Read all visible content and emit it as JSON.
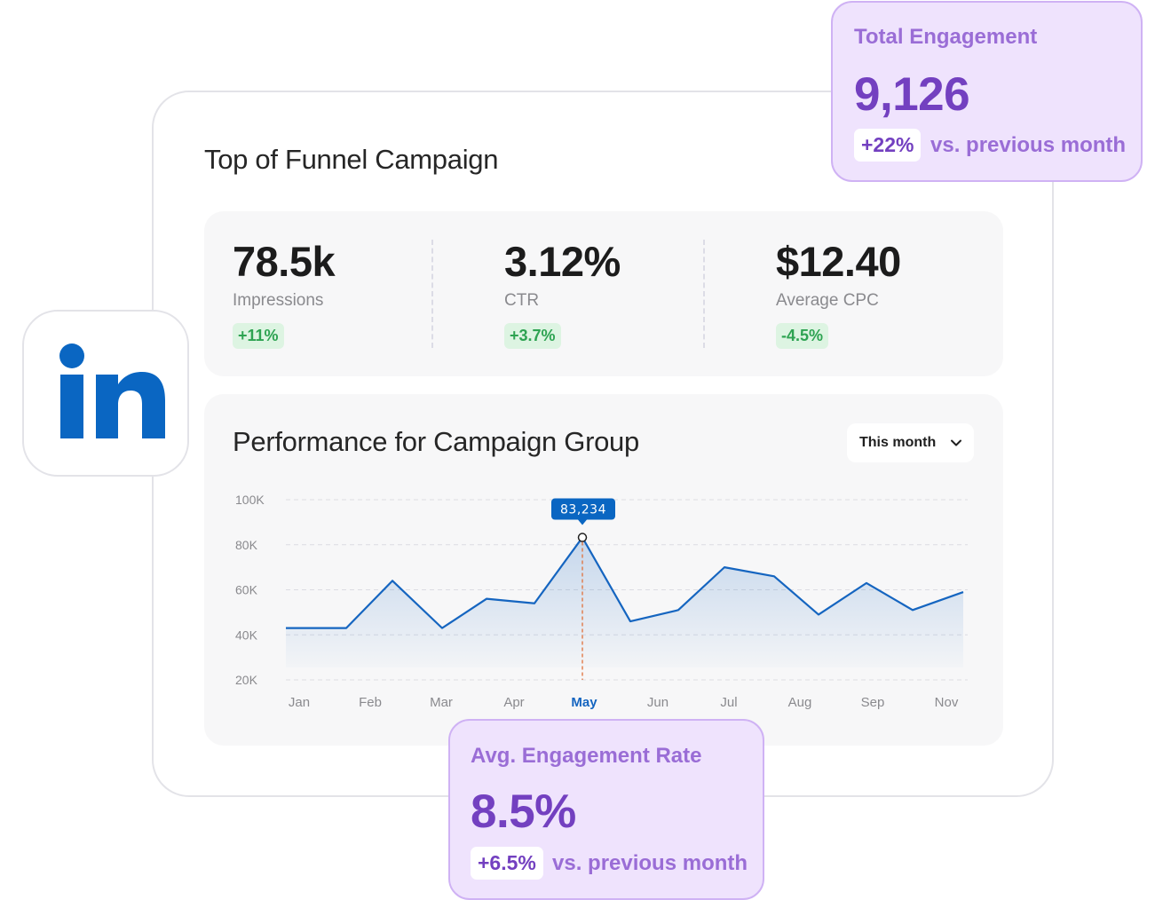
{
  "campaign": {
    "title": "Top of Funnel Campaign"
  },
  "metrics": [
    {
      "value": "78.5k",
      "label": "Impressions",
      "change": "+11%"
    },
    {
      "value": "3.12%",
      "label": "CTR",
      "change": "+3.7%"
    },
    {
      "value": "$12.40",
      "label": "Average CPC",
      "change": "-4.5%"
    }
  ],
  "performance": {
    "title": "Performance for Campaign Group",
    "period": "This month",
    "tooltip": "83,234"
  },
  "total_engagement": {
    "label": "Total Engagement",
    "value": "9,126",
    "change": "+22%",
    "compare": "vs. previous month"
  },
  "avg_engagement_rate": {
    "label": "Avg. Engagement Rate",
    "value": "8.5%",
    "change": "+6.5%",
    "compare": "vs. previous month"
  },
  "logo": {
    "brand": "in"
  },
  "colors": {
    "line": "#1565c0",
    "accent_purple": "#7340c0",
    "positive_green": "#2ea352",
    "highlight_month": "#1565c0",
    "marker_dash": "#e0703a"
  },
  "chart_data": {
    "type": "area",
    "categories": [
      "Jan",
      "Feb",
      "Mar",
      "Apr",
      "May",
      "Jun",
      "Jul",
      "Aug",
      "Sep",
      "Nov"
    ],
    "y_ticks": [
      "100K",
      "80K",
      "60K",
      "40K",
      "20K"
    ],
    "ylim": [
      20000,
      100000
    ],
    "highlight": "May",
    "points": [
      {
        "x": "Jan",
        "y": 43000
      },
      {
        "x": "Jan–Feb",
        "y": 43000
      },
      {
        "x": "Feb",
        "y": 64000
      },
      {
        "x": "Mar",
        "y": 43000
      },
      {
        "x": "Apr",
        "y": 56000
      },
      {
        "x": "Apr–May",
        "y": 54000
      },
      {
        "x": "May",
        "y": 83234
      },
      {
        "x": "May–Jun",
        "y": 46000
      },
      {
        "x": "Jun",
        "y": 51000
      },
      {
        "x": "Jul",
        "y": 70000
      },
      {
        "x": "Jul–Aug",
        "y": 66000
      },
      {
        "x": "Aug",
        "y": 49000
      },
      {
        "x": "Sep",
        "y": 63000
      },
      {
        "x": "Sep–Nov",
        "y": 51000
      },
      {
        "x": "Nov",
        "y": 59000
      }
    ],
    "grid": true,
    "legend": "none"
  }
}
